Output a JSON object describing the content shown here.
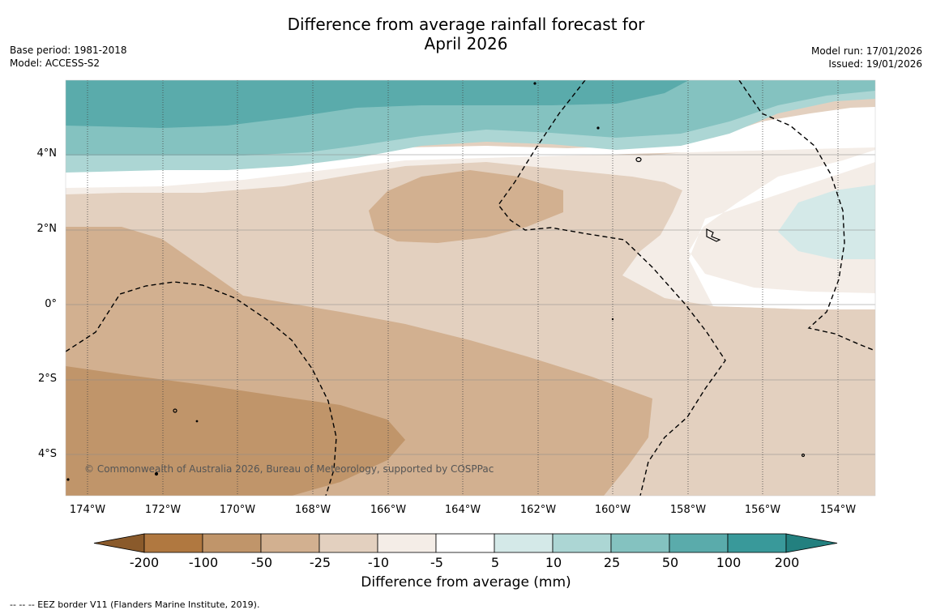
{
  "title": {
    "line1": "Difference from average rainfall forecast for",
    "line2": "April 2026"
  },
  "meta_left": {
    "base_period": "Base period: 1981-2018",
    "model": "Model: ACCESS-S2"
  },
  "meta_right": {
    "model_run": "Model run: 17/01/2026",
    "issued": "Issued: 19/01/2026"
  },
  "map": {
    "credit": "© Commonwealth of Australia 2026, Bureau of Meteorology, supported by COSPPac",
    "lat_labels": [
      "4°N",
      "2°N",
      "0°",
      "2°S",
      "4°S"
    ],
    "lon_labels": [
      "174°W",
      "172°W",
      "170°W",
      "168°W",
      "166°W",
      "164°W",
      "162°W",
      "160°W",
      "158°W",
      "156°W",
      "154°W"
    ]
  },
  "colorbar": {
    "title": "Difference from average (mm)",
    "ticks": [
      "-200",
      "-100",
      "-50",
      "-25",
      "-10",
      "-5",
      "5",
      "10",
      "25",
      "50",
      "100",
      "200"
    ],
    "colors": [
      "#8a5a2b",
      "#b07840",
      "#c0956a",
      "#d2b090",
      "#e3d0bf",
      "#f4ede7",
      "#ffffff",
      "#d4e9e8",
      "#acd6d4",
      "#84c2c0",
      "#5aabab",
      "#39999a",
      "#23807f"
    ]
  },
  "footer": {
    "legend": "--  --  -- EEZ border V11 (Flanders Marine Institute, 2019)."
  }
}
